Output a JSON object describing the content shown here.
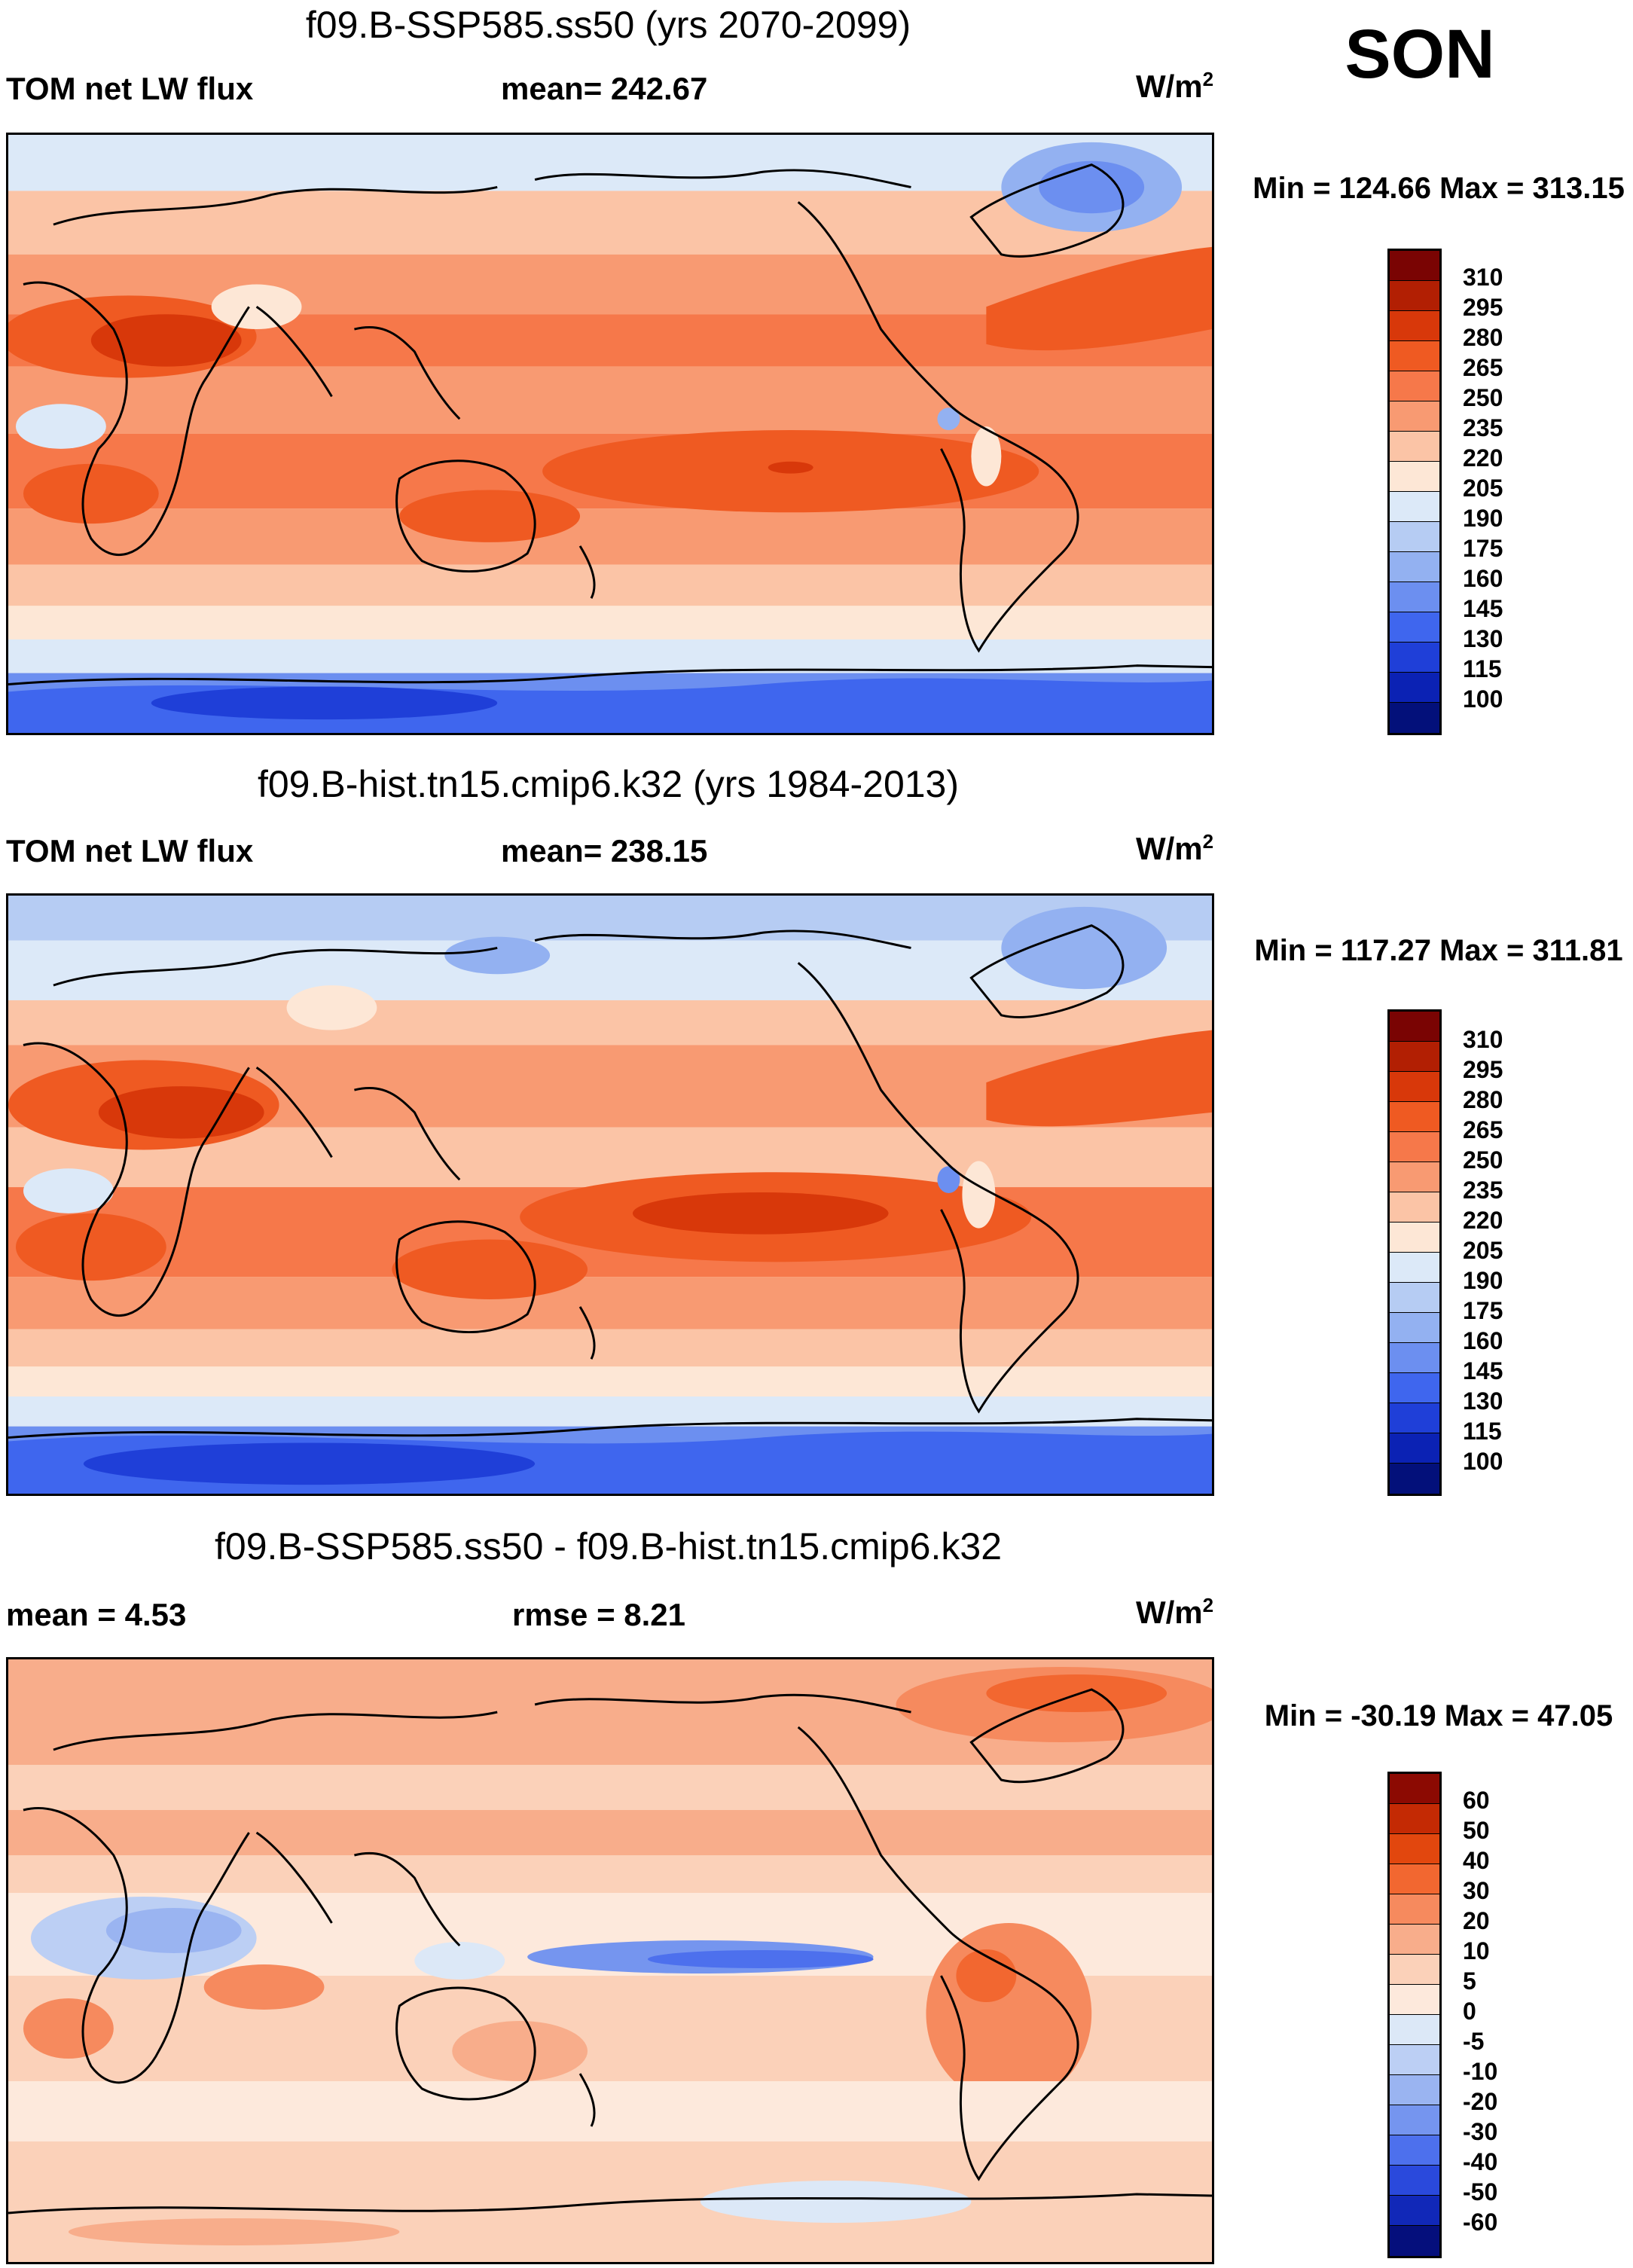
{
  "season": "SON",
  "panels": [
    {
      "title": "f09.B-SSP585.ss50 (yrs 2070-2099)",
      "left_label": "TOM net LW flux",
      "center_label": "mean= 242.67",
      "units_base": "W/m",
      "units_sup": "2",
      "minmax": "Min = 124.66 Max = 313.15"
    },
    {
      "title": "f09.B-hist.tn15.cmip6.k32 (yrs 1984-2013)",
      "left_label": "TOM net LW flux",
      "center_label": "mean= 238.15",
      "units_base": "W/m",
      "units_sup": "2",
      "minmax": "Min = 117.27 Max = 311.81"
    },
    {
      "title": "f09.B-SSP585.ss50 - f09.B-hist.tn15.cmip6.k32",
      "left_label": "mean =   4.53",
      "center_label": "rmse =   8.21",
      "units_base": "W/m",
      "units_sup": "2",
      "minmax": "Min = -30.19 Max =  47.05"
    }
  ],
  "colorbars": {
    "abs": {
      "labels": [
        "310",
        "295",
        "280",
        "265",
        "250",
        "235",
        "220",
        "205",
        "190",
        "175",
        "160",
        "145",
        "130",
        "115",
        "100"
      ],
      "colors": [
        "#7a0403",
        "#b21f03",
        "#d8380a",
        "#ef5a22",
        "#f6784a",
        "#f89a72",
        "#fbc4a6",
        "#fde7d6",
        "#dce9f8",
        "#b6ccf3",
        "#93b1f1",
        "#6c8ff0",
        "#3f66ee",
        "#1f3fd8",
        "#0b22b4",
        "#03107a"
      ]
    },
    "diff": {
      "labels": [
        "60",
        "50",
        "40",
        "30",
        "20",
        "10",
        "5",
        "0",
        "-5",
        "-10",
        "-20",
        "-30",
        "-40",
        "-50",
        "-60"
      ],
      "colors": [
        "#8c0a02",
        "#c42a04",
        "#e2470e",
        "#f26730",
        "#f68a5e",
        "#f8ad8b",
        "#fbd1b9",
        "#fde9dc",
        "#dce8f7",
        "#bccff4",
        "#9ab4f1",
        "#7595ef",
        "#4d70ed",
        "#2a49dc",
        "#1128b8",
        "#050f7c"
      ]
    }
  }
}
